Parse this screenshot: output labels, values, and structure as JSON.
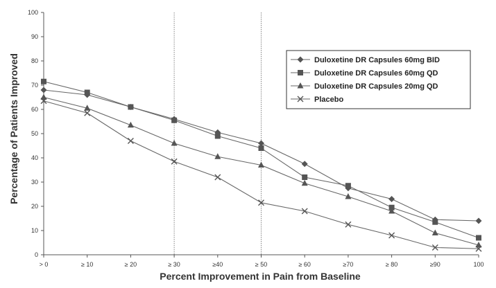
{
  "chart_data": {
    "type": "line",
    "title": "",
    "xlabel": "Percent Improvement in Pain from Baseline",
    "ylabel": "Percentage of Patients Improved",
    "ylim": [
      0,
      100
    ],
    "yticks": [
      0,
      10,
      20,
      30,
      40,
      50,
      60,
      70,
      80,
      90,
      100
    ],
    "categories": [
      "> 0",
      "≥ 10",
      "≥ 20",
      "≥ 30",
      "≥40",
      "≥ 50",
      "≥ 60",
      "≥70",
      "≥ 80",
      "≥90",
      "100"
    ],
    "reference_lines_at": [
      "≥ 30",
      "≥ 50"
    ],
    "legend_position": "top-right",
    "series": [
      {
        "name": "Duloxetine DR Capsules 60mg BID",
        "marker": "diamond",
        "values": [
          68,
          66,
          61,
          56,
          50.5,
          46,
          37.5,
          27.5,
          23,
          14.5,
          14
        ]
      },
      {
        "name": "Duloxetine DR Capsules 60mg QD",
        "marker": "square",
        "values": [
          71.5,
          67,
          61,
          55.5,
          49,
          44,
          32,
          28.5,
          19.5,
          13.5,
          7
        ]
      },
      {
        "name": "Duloxetine DR Capsules 20mg QD",
        "marker": "triangle",
        "values": [
          65,
          60.5,
          53.5,
          46,
          40.5,
          37,
          29.5,
          24,
          18,
          9,
          4
        ]
      },
      {
        "name": "Placebo",
        "marker": "x",
        "values": [
          63.5,
          58.5,
          47,
          38.5,
          32,
          21.5,
          18,
          12.5,
          8,
          3,
          2.5
        ]
      }
    ]
  }
}
